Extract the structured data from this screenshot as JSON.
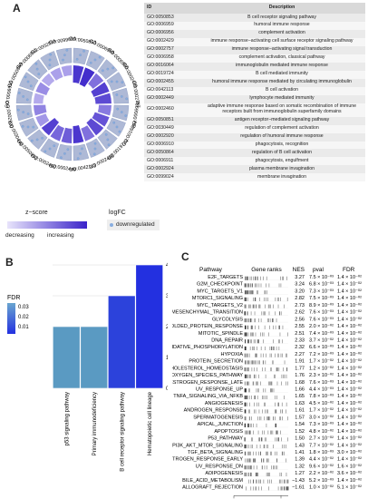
{
  "panel_labels": {
    "a": "A",
    "b": "B",
    "c": "C"
  },
  "panel_a": {
    "table_headers": {
      "id": "ID",
      "description": "Description"
    },
    "terms": [
      {
        "id": "GO:0050853",
        "desc": "B cell receptor signaling pathway"
      },
      {
        "id": "GO:0006959",
        "desc": "humoral immune response"
      },
      {
        "id": "GO:0006956",
        "desc": "complement activation"
      },
      {
        "id": "GO:0002429",
        "desc": "immune response−activating cell surface receptor signaling pathway"
      },
      {
        "id": "GO:0002757",
        "desc": "immune response−activating signal transduction"
      },
      {
        "id": "GO:0006958",
        "desc": "complement activation, classical pathway"
      },
      {
        "id": "GO:0016064",
        "desc": "immunoglobulin mediated immune response"
      },
      {
        "id": "GO:0019724",
        "desc": "B cell mediated immunity"
      },
      {
        "id": "GO:0002455",
        "desc": "humoral immune response mediated by circulating immunoglobulin"
      },
      {
        "id": "GO:0042113",
        "desc": "B cell activation"
      },
      {
        "id": "GO:0002449",
        "desc": "lymphocyte mediated immunity"
      },
      {
        "id": "GO:0002460",
        "desc": "adaptive immune response based on somatic recombination of immune receptors built from immunoglobulin superfamily domains"
      },
      {
        "id": "GO:0050851",
        "desc": "antigen receptor−mediated signaling pathway"
      },
      {
        "id": "GO:0030449",
        "desc": "regulation of complement activation"
      },
      {
        "id": "GO:0002920",
        "desc": "regulation of humoral immune response"
      },
      {
        "id": "GO:0006910",
        "desc": "phagocytosis, recognition"
      },
      {
        "id": "GO:0050864",
        "desc": "regulation of B cell activation"
      },
      {
        "id": "GO:0006911",
        "desc": "phagocytosis, engulfment"
      },
      {
        "id": "GO:0002924",
        "desc": "plasma membrane invagination"
      },
      {
        "id": "GO:0099024",
        "desc": "membrane invagination"
      }
    ],
    "zscore_title": "z−score",
    "zscore_low": "decreasing",
    "zscore_high": "increasing",
    "logfc_title": "logFC",
    "logfc_item": "downregulated",
    "colors": {
      "gradient_low": "#e8e4fb",
      "gradient_high": "#3a23c9",
      "ring": "#aeb9d6",
      "marker": "#88aee0"
    }
  },
  "chart_data": [
    {
      "type": "bar",
      "categories": [
        "p53 signaling pathway",
        "Primary immunodeficiency",
        "B cell receptor signaling pathway",
        "Hematopoietic cell lineage"
      ],
      "values": [
        2,
        2,
        3,
        4
      ],
      "fdr": [
        0.03,
        0.03,
        0.01,
        0.006
      ],
      "ylabel": "Count",
      "ylim": [
        0,
        4
      ],
      "yticks": [
        "0",
        "1",
        "2",
        "3",
        "4"
      ],
      "legend_title": "FDR",
      "legend_ticks": [
        "0.03",
        "0.02",
        "0.01"
      ],
      "colors": {
        "low_fdr": "#2330e0",
        "high_fdr": "#5a9ac2"
      }
    },
    {
      "type": "table",
      "headers": {
        "pathway": "Pathway",
        "ranks": "Gene ranks",
        "nes": "NES",
        "pval": "pval",
        "fdr": "FDR"
      },
      "x_ticks": [
        "0",
        "50,000"
      ],
      "rows": [
        {
          "pathway": "E2F_TARGETS",
          "nes": "3.27",
          "pval": "7.5 × 10⁻⁰³",
          "fdr": "1.4 × 10⁻⁰²"
        },
        {
          "pathway": "G2M_CHECKPOINT",
          "nes": "3.24",
          "pval": "6.8 × 10⁻⁰³",
          "fdr": "1.4 × 10⁻⁰²"
        },
        {
          "pathway": "MYC_TARGETS_V1",
          "nes": "3.20",
          "pval": "7.3 × 10⁻⁰³",
          "fdr": "1.4 × 10⁻⁰²"
        },
        {
          "pathway": "MTORC1_SIGNALING",
          "nes": "2.82",
          "pval": "7.5 × 10⁻⁰³",
          "fdr": "1.4 × 10⁻⁰²"
        },
        {
          "pathway": "MYC_TARGETS_V2",
          "nes": "2.73",
          "pval": "8.9 × 10⁻⁰³",
          "fdr": "1.4 × 10⁻⁰²"
        },
        {
          "pathway": "EPITHELIAL_MESENCHYMAL_TRANSITION",
          "nes": "2.62",
          "pval": "7.6 × 10⁻⁰³",
          "fdr": "1.4 × 10⁻⁰²"
        },
        {
          "pathway": "GLYCOLYSIS",
          "nes": "2.56",
          "pval": "7.6 × 10⁻⁰³",
          "fdr": "1.4 × 10⁻⁰²"
        },
        {
          "pathway": "UNFOLDED_PROTEIN_RESPONSE",
          "nes": "2.55",
          "pval": "2.0 × 10⁻⁰²",
          "fdr": "1.4 × 10⁻⁰²"
        },
        {
          "pathway": "MITOTIC_SPINDLE",
          "nes": "2.51",
          "pval": "7.4 × 10⁻⁰³",
          "fdr": "1.4 × 10⁻⁰²"
        },
        {
          "pathway": "DNA_REPAIR",
          "nes": "2.33",
          "pval": "3.7 × 10⁻⁰²",
          "fdr": "1.4 × 10⁻⁰²"
        },
        {
          "pathway": "OXIDATIVE_PHOSPHORYLATION",
          "nes": "2.32",
          "pval": "6.6 × 10⁻⁰³",
          "fdr": "1.4 × 10⁻⁰²"
        },
        {
          "pathway": "HYPOXIA",
          "nes": "2.27",
          "pval": "7.2 × 10⁻⁰³",
          "fdr": "1.4 × 10⁻⁰²"
        },
        {
          "pathway": "PROTEIN_SECRETION",
          "nes": "1.91",
          "pval": "1.7 × 10⁻⁰²",
          "fdr": "1.4 × 10⁻⁰²"
        },
        {
          "pathway": "CHOLESTEROL_HOMEOSTASIS",
          "nes": "1.77",
          "pval": "1.2 × 10⁻⁰²",
          "fdr": "1.4 × 10⁻⁰²"
        },
        {
          "pathway": "REACTIVE_OXYGEN_SPECIES_PATHWAY",
          "nes": "1.76",
          "pval": "2.3 × 10⁻⁰²",
          "fdr": "1.4 × 10⁻⁰²"
        },
        {
          "pathway": "ESTROGEN_RESPONSE_LATE",
          "nes": "1.68",
          "pval": "7.6 × 10⁻⁰³",
          "fdr": "1.4 × 10⁻⁰²"
        },
        {
          "pathway": "UV_RESPONSE_UP",
          "nes": "1.66",
          "pval": "4.4 × 10⁻⁰³",
          "fdr": "1.4 × 10⁻⁰²"
        },
        {
          "pathway": "TNFA_SIGNALING_VIA_NFKB",
          "nes": "1.65",
          "pval": "7.8 × 10⁻⁰³",
          "fdr": "1.4 × 10⁻⁰²"
        },
        {
          "pathway": "ANGIOGENESIS",
          "nes": "1.63",
          "pval": "4.5 × 10⁻⁰²",
          "fdr": "1.4 × 10⁻⁰²"
        },
        {
          "pathway": "ANDROGEN_RESPONSE",
          "nes": "1.61",
          "pval": "1.7 × 10⁻⁰²",
          "fdr": "1.4 × 10⁻⁰²"
        },
        {
          "pathway": "SPERMATOGENESIS",
          "nes": "1.57",
          "pval": "3.0 × 10⁻⁰²",
          "fdr": "1.4 × 10⁻⁰²"
        },
        {
          "pathway": "APICAL_JUNCTION",
          "nes": "1.54",
          "pval": "7.3 × 10⁻⁰³",
          "fdr": "1.4 × 10⁻⁰²"
        },
        {
          "pathway": "APOPTOSIS",
          "nes": "1.52",
          "pval": "4.8 × 10⁻⁰²",
          "fdr": "1.4 × 10⁻⁰²"
        },
        {
          "pathway": "P53_PATHWAY",
          "nes": "1.50",
          "pval": "2.7 × 10⁻⁰²",
          "fdr": "1.4 × 10⁻⁰²"
        },
        {
          "pathway": "PI3K_AKT_MTOR_SIGNALING",
          "nes": "1.43",
          "pval": "7.7 × 10⁻⁰²",
          "fdr": "1.4 × 10⁻⁰²"
        },
        {
          "pathway": "TGF_BETA_SIGNALING",
          "nes": "1.41",
          "pval": "1.8 × 10⁻⁰³",
          "fdr": "3.0 × 10⁻⁰²"
        },
        {
          "pathway": "ESTROGEN_RESPONSE_EARLY",
          "nes": "1.39",
          "pval": "4.4 × 10⁻⁰²",
          "fdr": "1.4 × 10⁻⁰²"
        },
        {
          "pathway": "UV_RESPONSE_DN",
          "nes": "1.32",
          "pval": "9.6 × 10⁻⁰²",
          "fdr": "1.6 × 10⁻⁰²"
        },
        {
          "pathway": "ADIPOGENESIS",
          "nes": "1.27",
          "pval": "2.2 × 10⁻⁰²",
          "fdr": "3.6 × 10⁻⁰²"
        },
        {
          "pathway": "BILE_ACID_METABOLISM",
          "nes": "−1.43",
          "pval": "5.2 × 10⁻⁰³",
          "fdr": "1.4 × 10⁻⁰²"
        },
        {
          "pathway": "ALLOGRAFT_REJECTION",
          "nes": "−1.61",
          "pval": "1.0 × 10⁻⁰²",
          "fdr": "5.1 × 10⁻⁰²"
        }
      ]
    }
  ]
}
